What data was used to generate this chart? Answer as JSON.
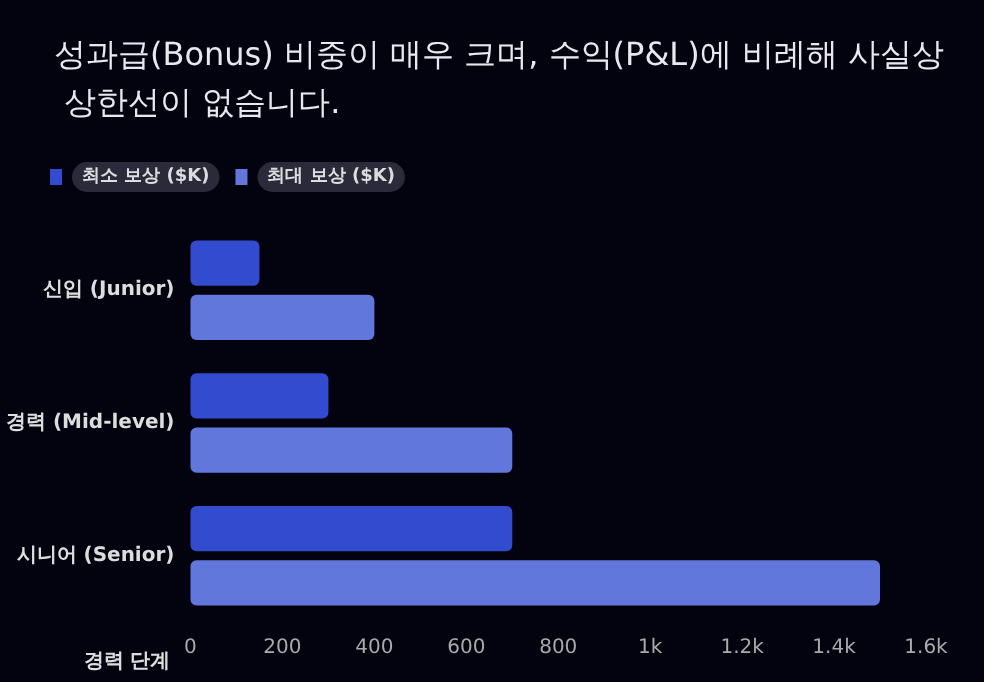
{
  "chart_data": {
    "type": "bar",
    "orientation": "horizontal",
    "title": "성과급(Bonus) 비중이 매우 크며, 수익(P&L)에 비례해 사실상 상한선이 없습니다.",
    "ylabel": "경력 단계",
    "categories": [
      "신입 (Junior)",
      "경력 (Mid-level)",
      "시니어 (Senior)"
    ],
    "series": [
      {
        "name": "최소 보상 ($K)",
        "color": "#334bcf",
        "values": [
          150,
          300,
          700
        ]
      },
      {
        "name": "최대 보상 ($K)",
        "color": "#6277db",
        "values": [
          400,
          700,
          1500
        ]
      }
    ],
    "xlim": [
      0,
      1600
    ],
    "xticks": [
      0,
      200,
      400,
      600,
      800,
      {
        "value": 1000,
        "label": "1k"
      },
      {
        "value": 1200,
        "label": "1.2k"
      },
      {
        "value": 1400,
        "label": "1.4k"
      },
      {
        "value": 1600,
        "label": "1.6k"
      }
    ],
    "grid": false,
    "legend": "top left"
  }
}
